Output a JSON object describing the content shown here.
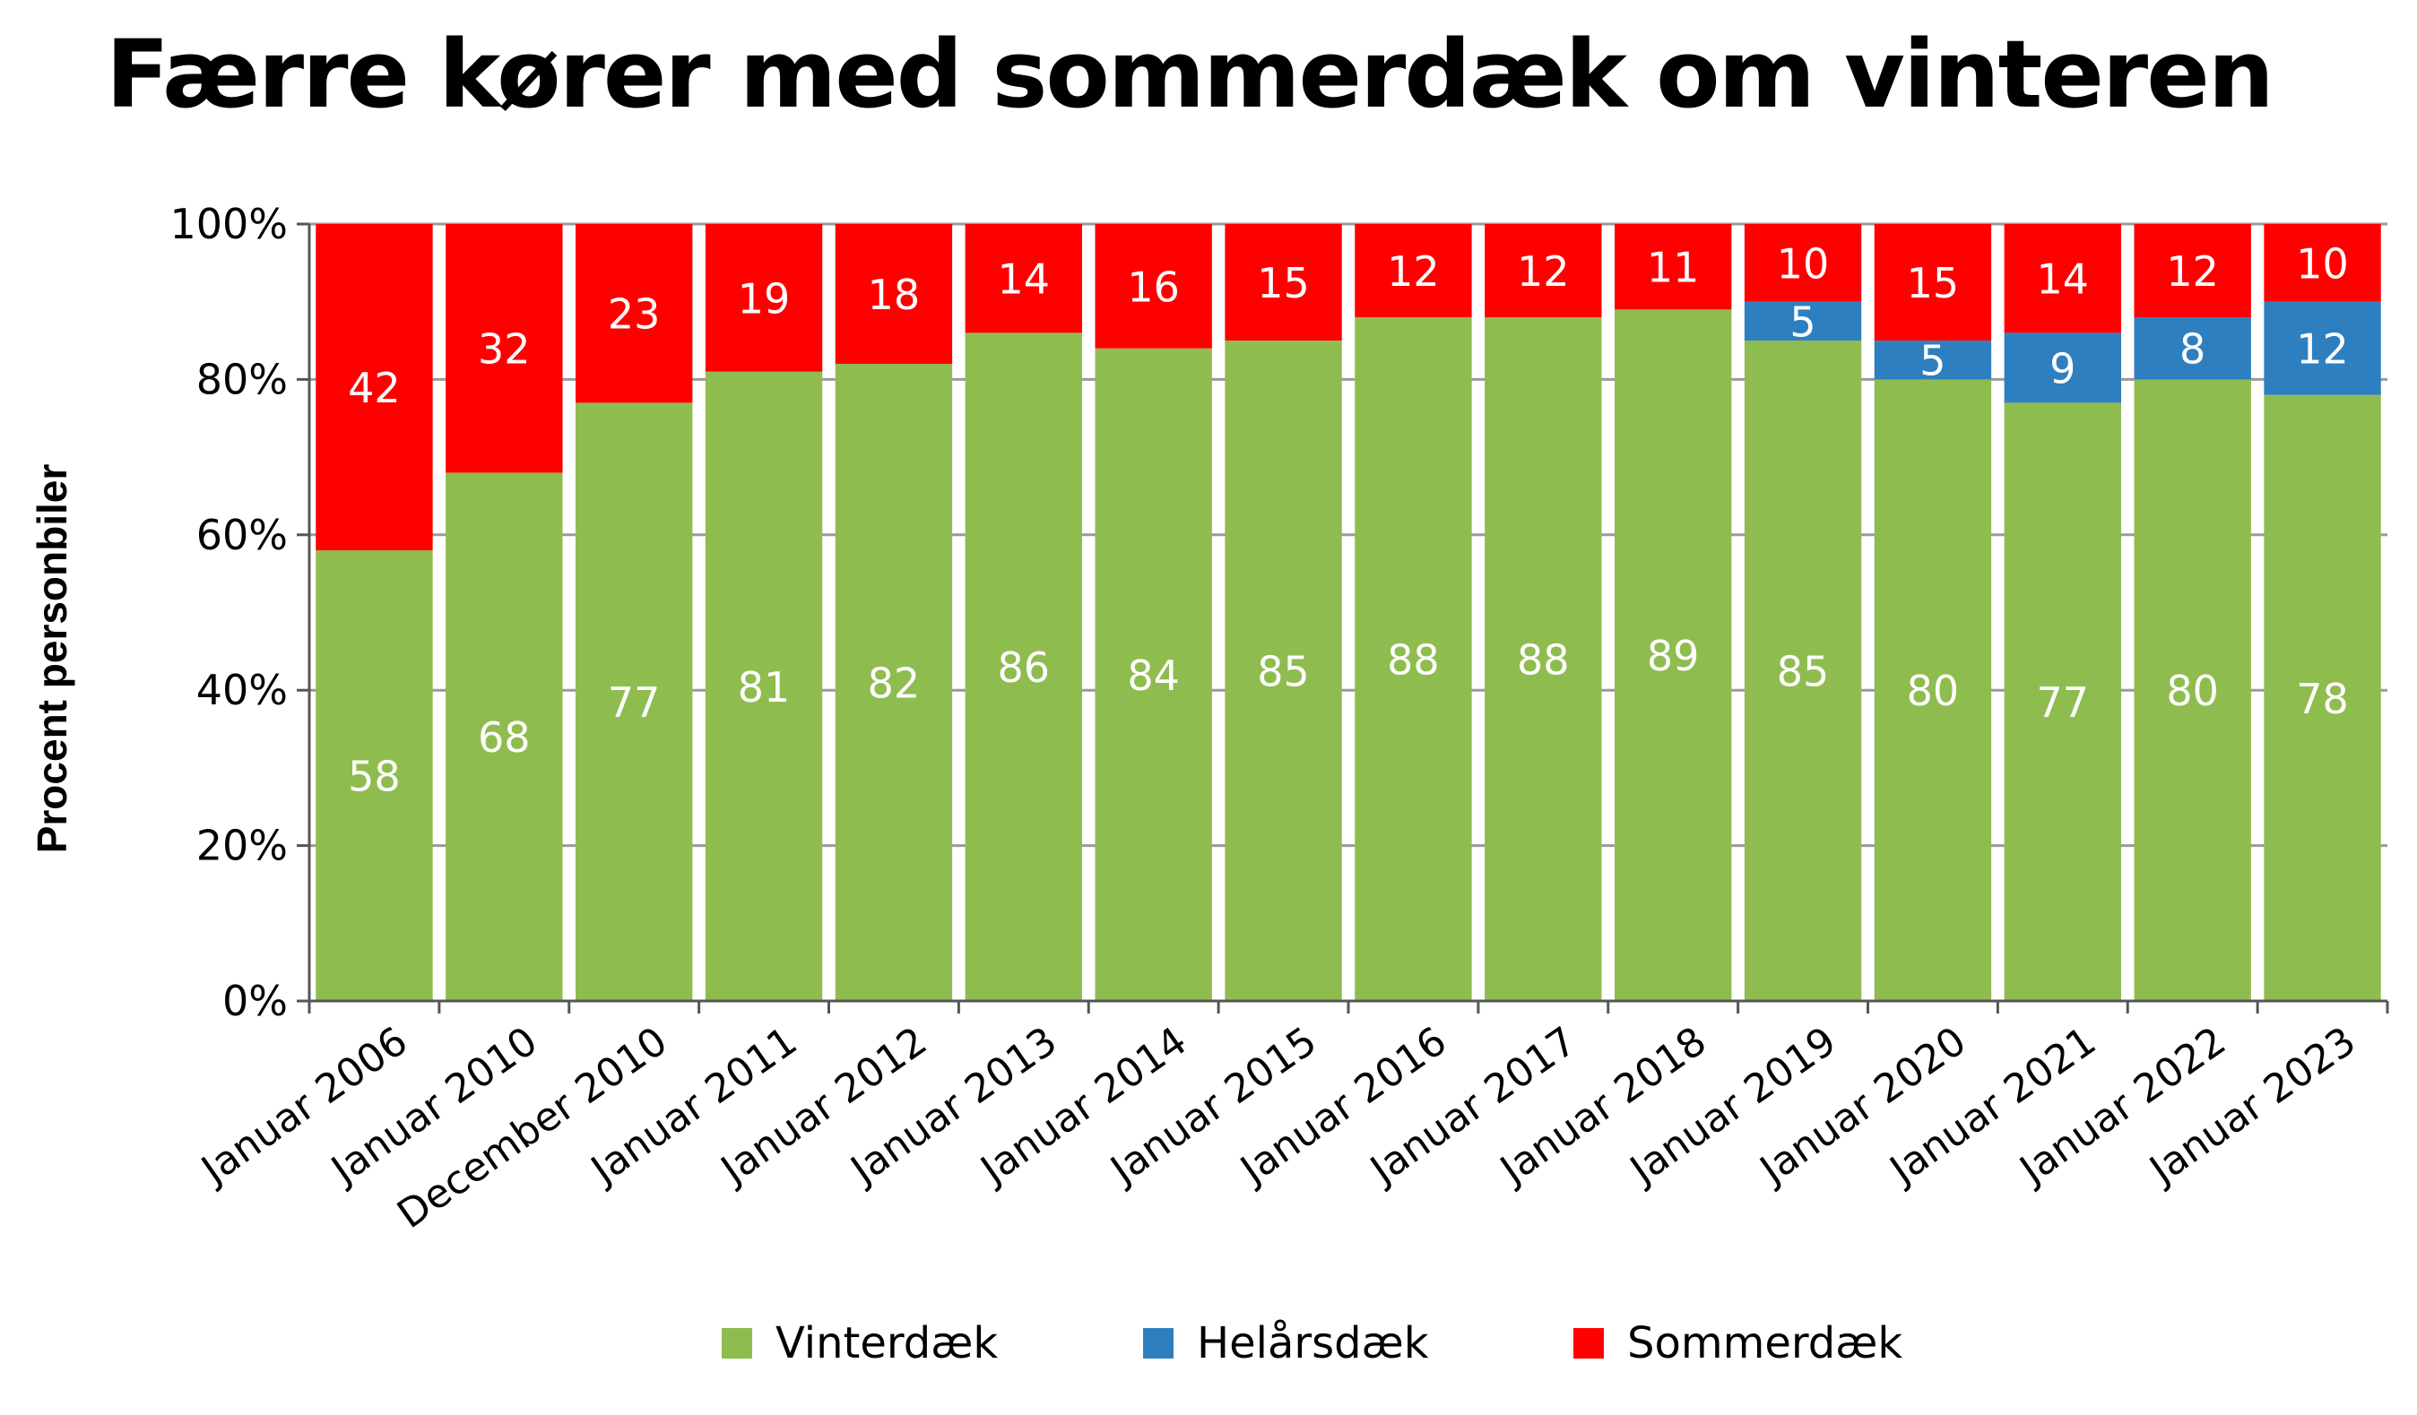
{
  "chart_data": {
    "type": "bar",
    "stacked": true,
    "title": "Færre kører med sommerdæk om vinteren",
    "ylabel": "Procent personbiler",
    "xlabel": "",
    "ylim": [
      0,
      100
    ],
    "yticks": [
      "0%",
      "20%",
      "40%",
      "60%",
      "80%",
      "100%"
    ],
    "grid": true,
    "legend_position": "bottom",
    "categories": [
      "Januar 2006",
      "Januar 2010",
      "December 2010",
      "Januar 2011",
      "Januar 2012",
      "Januar 2013",
      "Januar 2014",
      "Januar 2015",
      "Januar 2016",
      "Januar 2017",
      "Januar 2018",
      "Januar 2019",
      "Januar 2020",
      "Januar 2021",
      "Januar 2022",
      "Januar 2023"
    ],
    "series": [
      {
        "name": "Vinterdæk",
        "color": "#8fbc4f",
        "values": [
          58,
          68,
          77,
          81,
          82,
          86,
          84,
          85,
          88,
          88,
          89,
          85,
          80,
          77,
          80,
          78
        ]
      },
      {
        "name": "Helårsdæk",
        "color": "#2e7fc0",
        "values": [
          null,
          null,
          null,
          null,
          null,
          null,
          null,
          null,
          null,
          null,
          null,
          5,
          5,
          9,
          8,
          12
        ]
      },
      {
        "name": "Sommerdæk",
        "color": "#ff0000",
        "values": [
          42,
          32,
          23,
          19,
          18,
          14,
          16,
          15,
          12,
          12,
          11,
          10,
          15,
          14,
          12,
          10
        ]
      }
    ]
  }
}
